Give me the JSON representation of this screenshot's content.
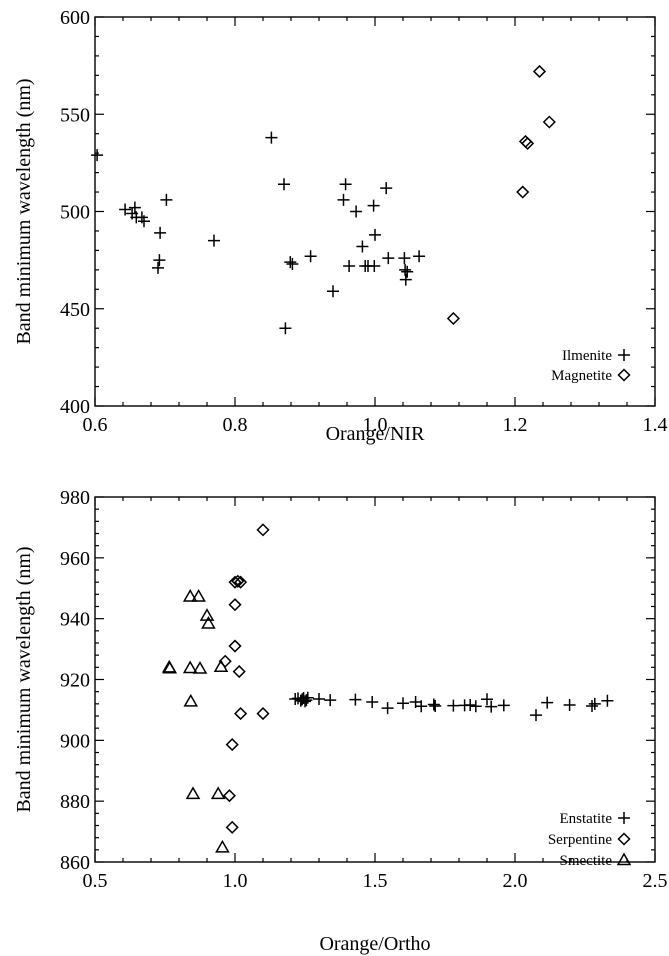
{
  "chart_data": [
    {
      "type": "scatter",
      "title": "",
      "xlabel": "Orange/NIR",
      "ylabel": "Band minimum wavelength (nm)",
      "xlim": [
        0.6,
        1.4
      ],
      "ylim": [
        400,
        600
      ],
      "xticks": [
        "0.6",
        "0.8",
        "1.0",
        "1.2",
        "1.4"
      ],
      "yticks": [
        "400",
        "450",
        "500",
        "550",
        "600"
      ],
      "grid": false,
      "legend": "bottom-right",
      "series": [
        {
          "name": "Ilmenite",
          "marker": "plus",
          "points": [
            [
              0.603,
              529
            ],
            [
              0.643,
              501
            ],
            [
              0.653,
              499
            ],
            [
              0.657,
              502
            ],
            [
              0.659,
              497
            ],
            [
              0.667,
              497
            ],
            [
              0.67,
              495
            ],
            [
              0.69,
              471
            ],
            [
              0.692,
              475
            ],
            [
              0.693,
              489
            ],
            [
              0.702,
              506
            ],
            [
              0.77,
              485
            ],
            [
              0.852,
              538
            ],
            [
              0.87,
              514
            ],
            [
              0.872,
              440
            ],
            [
              0.879,
              474
            ],
            [
              0.882,
              473
            ],
            [
              0.908,
              477
            ],
            [
              0.94,
              459
            ],
            [
              0.955,
              506
            ],
            [
              0.958,
              514
            ],
            [
              0.963,
              472
            ],
            [
              0.973,
              500
            ],
            [
              0.982,
              482
            ],
            [
              0.986,
              472
            ],
            [
              0.99,
              472
            ],
            [
              0.998,
              503
            ],
            [
              0.999,
              472
            ],
            [
              1.0,
              488
            ],
            [
              1.016,
              512
            ],
            [
              1.019,
              476
            ],
            [
              1.042,
              476
            ],
            [
              1.043,
              470
            ],
            [
              1.044,
              465
            ],
            [
              1.046,
              469
            ],
            [
              1.063,
              477
            ]
          ]
        },
        {
          "name": "Magnetite",
          "marker": "diamond",
          "points": [
            [
              1.112,
              445
            ],
            [
              1.211,
              510
            ],
            [
              1.215,
              536
            ],
            [
              1.218,
              535
            ],
            [
              1.235,
              572
            ],
            [
              1.249,
              546
            ]
          ]
        }
      ]
    },
    {
      "type": "scatter",
      "title": "",
      "xlabel": "Orange/Ortho",
      "ylabel": "Band minimum wavelength (nm)",
      "xlim": [
        0.5,
        2.5
      ],
      "ylim": [
        860,
        980
      ],
      "xticks": [
        "0.5",
        "1.0",
        "1.5",
        "2.0",
        "2.5"
      ],
      "yticks": [
        "860",
        "880",
        "900",
        "920",
        "940",
        "960",
        "980"
      ],
      "grid": false,
      "legend": "bottom-right",
      "series": [
        {
          "name": "Enstatite",
          "marker": "plus",
          "points": [
            [
              1.215,
              913.6
            ],
            [
              1.225,
              913.8
            ],
            [
              1.235,
              913.0
            ],
            [
              1.24,
              913.5
            ],
            [
              1.245,
              913.9
            ],
            [
              1.25,
              912.8
            ],
            [
              1.255,
              913.2
            ],
            [
              1.26,
              914.0
            ],
            [
              1.3,
              913.6
            ],
            [
              1.34,
              913.2
            ],
            [
              1.43,
              913.4
            ],
            [
              1.49,
              912.6
            ],
            [
              1.545,
              910.6
            ],
            [
              1.6,
              912.2
            ],
            [
              1.645,
              912.6
            ],
            [
              1.665,
              911.2
            ],
            [
              1.71,
              911.8
            ],
            [
              1.715,
              911.3
            ],
            [
              1.78,
              911.4
            ],
            [
              1.82,
              911.5
            ],
            [
              1.84,
              911.6
            ],
            [
              1.86,
              911.2
            ],
            [
              1.9,
              913.5
            ],
            [
              1.915,
              911.1
            ],
            [
              1.96,
              911.5
            ],
            [
              2.075,
              908.3
            ],
            [
              2.115,
              912.4
            ],
            [
              2.195,
              911.6
            ],
            [
              2.275,
              911.3
            ],
            [
              2.285,
              912.0
            ],
            [
              2.33,
              913.0
            ]
          ]
        },
        {
          "name": "Serpentine",
          "marker": "diamond",
          "points": [
            [
              0.965,
              926.0
            ],
            [
              0.98,
              881.8
            ],
            [
              0.99,
              871.4
            ],
            [
              0.99,
              898.6
            ],
            [
              1.0,
              952.0
            ],
            [
              1.0,
              931.0
            ],
            [
              1.0,
              944.6
            ],
            [
              1.01,
              952.3
            ],
            [
              1.02,
              952.0
            ],
            [
              1.015,
              922.6
            ],
            [
              1.02,
              908.8
            ],
            [
              1.1,
              969.2
            ],
            [
              1.1,
              908.8
            ]
          ]
        },
        {
          "name": "Smectite",
          "marker": "triangle",
          "points": [
            [
              0.765,
              924.0
            ],
            [
              0.767,
              923.7
            ],
            [
              0.84,
              947.3
            ],
            [
              0.84,
              923.8
            ],
            [
              0.842,
              912.8
            ],
            [
              0.85,
              882.4
            ],
            [
              0.87,
              947.3
            ],
            [
              0.875,
              923.6
            ],
            [
              0.9,
              941.0
            ],
            [
              0.905,
              938.4
            ],
            [
              0.94,
              882.4
            ],
            [
              0.95,
              924.2
            ],
            [
              0.955,
              864.8
            ]
          ]
        }
      ]
    }
  ]
}
